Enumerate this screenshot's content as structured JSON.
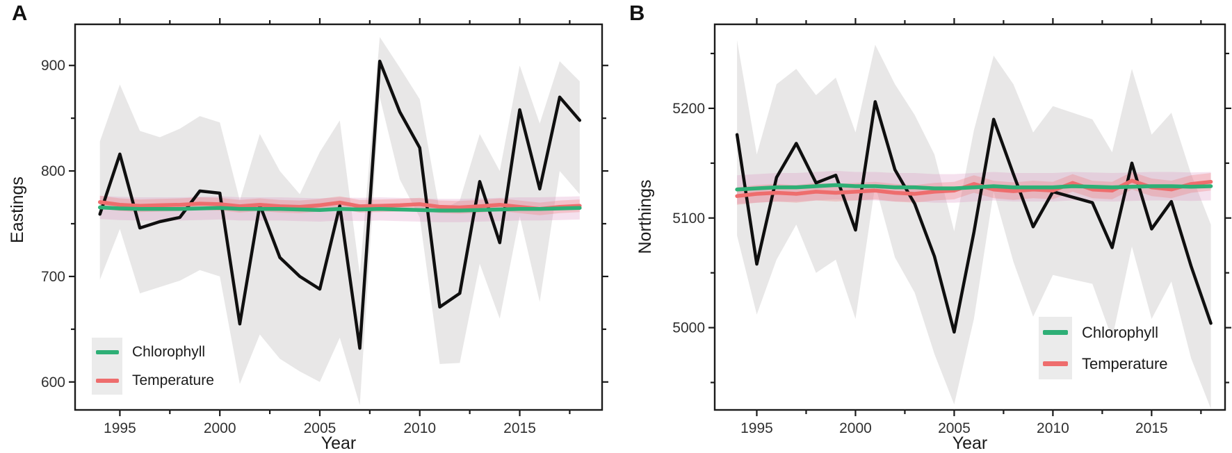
{
  "figure": {
    "background": "#ffffff",
    "panels": [
      {
        "title": "A",
        "ylabel": "Eastings",
        "xlabel": "Year",
        "legend": {
          "chlorophyll": "Chlorophyll",
          "temperature": "Temperature",
          "position": "bottom-left"
        }
      },
      {
        "title": "B",
        "ylabel": "Northings",
        "xlabel": "Year",
        "legend": {
          "chlorophyll": "Chlorophyll",
          "temperature": "Temperature",
          "position": "bottom-right"
        }
      }
    ]
  },
  "colors": {
    "observed_line": "#0f0f0f",
    "chlorophyll_line": "#2eaf76",
    "temperature_line": "#ee6d6d",
    "observed_band": "rgba(150,144,144,0.22)",
    "chlorophyll_band": "rgba(216,140,190,0.26)",
    "temperature_band": "rgba(240,110,110,0.28)",
    "axis": "#1a1a1a",
    "tick_text": "#303030",
    "legend_key_bg": "#ebebeb"
  },
  "chart_data": [
    {
      "type": "line",
      "panel": "A",
      "ylabel": "Eastings",
      "xlabel": "Year",
      "x": [
        1994,
        1995,
        1996,
        1997,
        1998,
        1999,
        2000,
        2001,
        2002,
        2003,
        2004,
        2005,
        2006,
        2007,
        2008,
        2009,
        2010,
        2011,
        2012,
        2013,
        2014,
        2015,
        2016,
        2017,
        2018
      ],
      "x_ticks": [
        1995,
        2000,
        2005,
        2010,
        2015
      ],
      "x_minor_ticks": [
        1997.5,
        2002.5,
        2007.5,
        2012.5,
        2017.5
      ],
      "y_ticks": [
        600,
        700,
        800,
        900
      ],
      "y_minor_ticks": [
        650,
        750,
        850
      ],
      "xlim": [
        1992.76,
        2019.12
      ],
      "ylim": [
        573.5,
        939.0
      ],
      "grid": false,
      "legend_entries": [
        "Chlorophyll",
        "Temperature"
      ],
      "legend_position": "bottom-left",
      "series": [
        {
          "name": "Observed (black)",
          "values": [
            759,
            816,
            746,
            752,
            756,
            781,
            779,
            655,
            768,
            718,
            700,
            688,
            767,
            632,
            904,
            856,
            822,
            671,
            684,
            790,
            732,
            858,
            783,
            870,
            848
          ],
          "band_upper": [
            828,
            882,
            838,
            832,
            840,
            852,
            846,
            772,
            835,
            800,
            778,
            818,
            848,
            702,
            927,
            898,
            868,
            762,
            772,
            835,
            800,
            900,
            845,
            904,
            885
          ],
          "band_lower": [
            697,
            745,
            684,
            690,
            696,
            706,
            700,
            598,
            645,
            622,
            610,
            600,
            642,
            578,
            870,
            792,
            756,
            617,
            618,
            712,
            660,
            757,
            676,
            800,
            778
          ]
        },
        {
          "name": "Chlorophyll",
          "values": [
            765.5,
            764.5,
            764,
            764,
            764,
            764.5,
            765,
            764,
            764,
            764,
            763.5,
            763,
            764,
            763.5,
            764,
            763.5,
            763,
            762.5,
            762.5,
            763,
            763.5,
            764,
            764,
            764.5,
            765
          ],
          "band_halfwidth": 11
        },
        {
          "name": "Temperature",
          "values": [
            770.5,
            768,
            767,
            767.5,
            768,
            769,
            768.5,
            766.5,
            768,
            766.5,
            766,
            767.5,
            770,
            766.5,
            767,
            767.5,
            768.5,
            766,
            765.5,
            766.5,
            768,
            766,
            764,
            766,
            767
          ],
          "band_halfwidth": 6
        }
      ]
    },
    {
      "type": "line",
      "panel": "B",
      "ylabel": "Northings",
      "xlabel": "Year",
      "x": [
        1994,
        1995,
        1996,
        1997,
        1998,
        1999,
        2000,
        2001,
        2002,
        2003,
        2004,
        2005,
        2006,
        2007,
        2008,
        2009,
        2010,
        2011,
        2012,
        2013,
        2014,
        2015,
        2016,
        2017,
        2018
      ],
      "x_ticks": [
        1995,
        2000,
        2005,
        2010,
        2015
      ],
      "x_minor_ticks": [
        1997.5,
        2002.5,
        2007.5,
        2012.5,
        2017.5
      ],
      "y_ticks": [
        5000,
        5100,
        5200
      ],
      "y_minor_ticks": [
        4950,
        5050,
        5150,
        5250
      ],
      "xlim": [
        1992.87,
        2018.72
      ],
      "ylim": [
        4925.0,
        5276.6
      ],
      "grid": false,
      "legend_entries": [
        "Chlorophyll",
        "Temperature"
      ],
      "legend_position": "bottom-right",
      "series": [
        {
          "name": "Observed (black)",
          "values": [
            5176,
            5058,
            5137,
            5168,
            5132,
            5139,
            5089,
            5206,
            5144,
            5113,
            5065,
            4996,
            5087,
            5190,
            5140,
            5092,
            5124,
            5119,
            5114,
            5073,
            5150,
            5090,
            5115,
            5056,
            5004
          ],
          "band_upper": [
            5262,
            5158,
            5222,
            5236,
            5212,
            5228,
            5178,
            5258,
            5222,
            5194,
            5158,
            5088,
            5180,
            5248,
            5222,
            5178,
            5202,
            5196,
            5190,
            5160,
            5236,
            5176,
            5196,
            5140,
            5094
          ],
          "band_lower": [
            5084,
            5012,
            5062,
            5094,
            5050,
            5062,
            5008,
            5130,
            5064,
            5032,
            4976,
            4930,
            5008,
            5124,
            5060,
            5010,
            5048,
            5044,
            5040,
            4990,
            5074,
            5008,
            5042,
            4972,
            4926
          ]
        },
        {
          "name": "Chlorophyll",
          "values": [
            5126,
            5127,
            5128,
            5128,
            5129,
            5130,
            5129,
            5129,
            5128,
            5128,
            5127,
            5127,
            5128,
            5129,
            5128,
            5128,
            5128,
            5129,
            5128.5,
            5128,
            5128.5,
            5129,
            5129,
            5128.5,
            5129
          ],
          "band_halfwidth": 13
        },
        {
          "name": "Temperature",
          "values": [
            5120,
            5122,
            5123,
            5122,
            5124,
            5123,
            5124,
            5125,
            5123,
            5122,
            5124,
            5125,
            5131,
            5126,
            5124.5,
            5126,
            5125,
            5132,
            5126,
            5125,
            5134,
            5128,
            5126,
            5131,
            5133
          ],
          "band_halfwidth": 8
        }
      ]
    }
  ]
}
